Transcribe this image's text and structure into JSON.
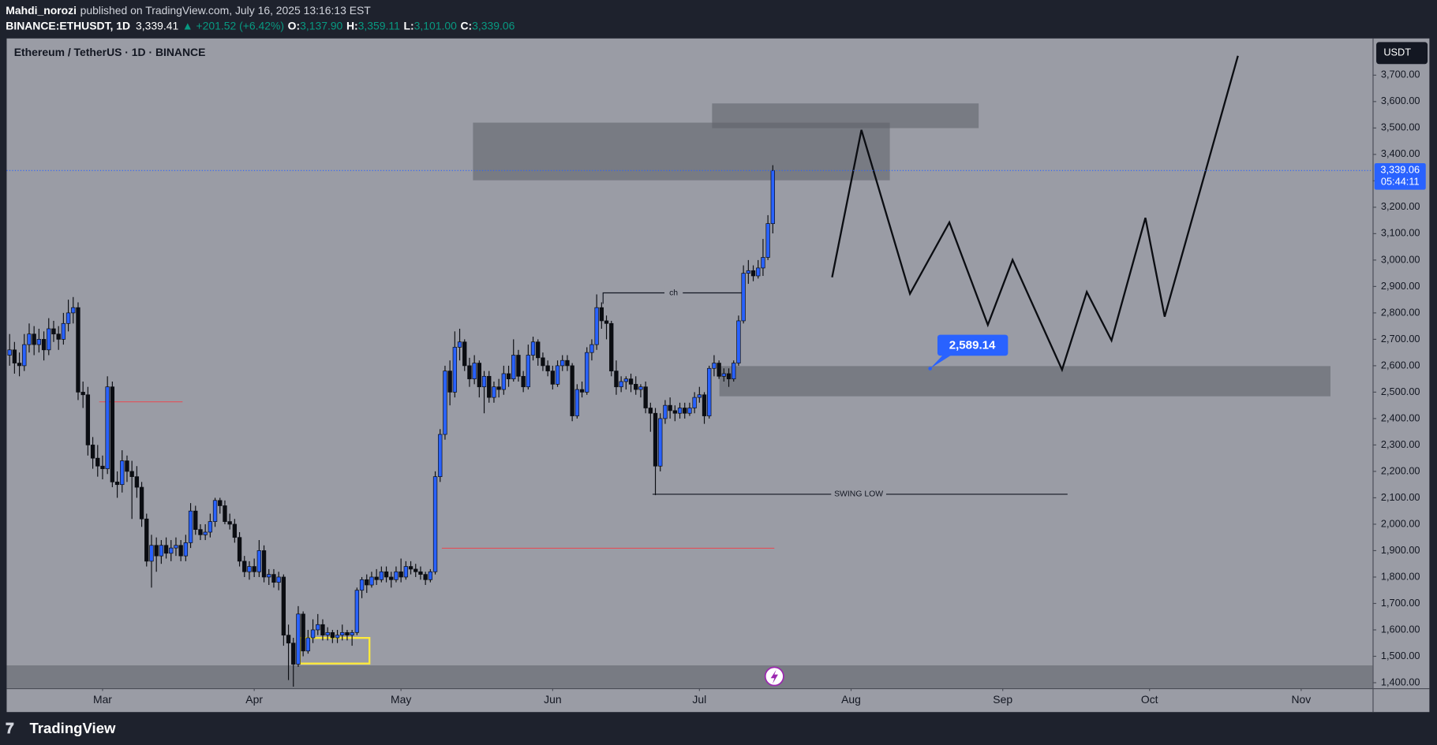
{
  "header": {
    "author": "Mahdi_norozi",
    "published": "published on TradingView.com, July 16, 2025 13:16:13 EST",
    "symbol": "BINANCE:ETHUSDT, 1D",
    "price": "3,339.41",
    "change": "▲ +201.52 (+6.42%)",
    "o_label": "O:",
    "o": "3,137.90",
    "h_label": "H:",
    "h": "3,359.11",
    "l_label": "L:",
    "l": "3,101.00",
    "c_label": "C:",
    "c": "3,339.06"
  },
  "footer": {
    "brand": "TradingView"
  },
  "chart_data": {
    "type": "candlestick",
    "title": "Ethereum / TetherUS · 1D · BINANCE",
    "currency": "USDT",
    "up_color": "#2962ff",
    "down_color": "#0b0d12",
    "open": [
      2640,
      2660,
      2610,
      2600,
      2680,
      2720,
      2680,
      2700,
      2660,
      2740,
      2720,
      2700,
      2760,
      2800,
      2820,
      2500,
      2490,
      2300,
      2250,
      2220,
      2210,
      2520,
      2160,
      2150,
      2240,
      2200,
      2180,
      2140,
      2020,
      1860,
      1920,
      1880,
      1920,
      1890,
      1910,
      1920,
      1880,
      1930,
      2050,
      1980,
      1960,
      1970,
      2010,
      2090,
      2070,
      2010,
      2000,
      1950,
      1860,
      1820,
      1840,
      1820,
      1900,
      1800,
      1810,
      1780,
      1800,
      1580,
      1550,
      1470,
      1660,
      1520,
      1570,
      1600,
      1620,
      1580,
      1590,
      1570,
      1580,
      1590,
      1580,
      1590,
      1750,
      1790,
      1770,
      1800,
      1790,
      1820,
      1800,
      1790,
      1820,
      1800,
      1840,
      1830,
      1820,
      1810,
      1790,
      1820,
      2180,
      2340,
      2580,
      2500,
      2670,
      2690,
      2600,
      2550,
      2610,
      2520,
      2560,
      2480,
      2520,
      2510,
      2570,
      2550,
      2640,
      2560,
      2520,
      2640,
      2690,
      2630,
      2600,
      2580,
      2530,
      2600,
      2620,
      2600,
      2410,
      2510,
      2500,
      2650,
      2680,
      2820,
      2770,
      2760,
      2580,
      2520,
      2540,
      2550,
      2530,
      2510,
      2520,
      2440,
      2420,
      2220,
      2400,
      2450,
      2430,
      2420,
      2440,
      2420,
      2440,
      2480,
      2490,
      2410,
      2590,
      2610,
      2560,
      2570,
      2550,
      2610,
      2770,
      2950,
      2960,
      2940,
      2970,
      3010,
      3137.9
    ],
    "high": [
      2720,
      2690,
      2650,
      2720,
      2760,
      2750,
      2740,
      2730,
      2780,
      2770,
      2750,
      2800,
      2850,
      2860,
      2840,
      2540,
      2520,
      2330,
      2300,
      2260,
      2560,
      2540,
      2200,
      2280,
      2260,
      2240,
      2220,
      2160,
      2040,
      1960,
      1950,
      1940,
      1950,
      1940,
      1950,
      1940,
      1960,
      2080,
      2070,
      2000,
      2000,
      2040,
      2100,
      2100,
      2090,
      2040,
      2020,
      1970,
      1880,
      1860,
      1870,
      1940,
      1920,
      1830,
      1830,
      1820,
      1810,
      1620,
      1570,
      1690,
      1670,
      1600,
      1640,
      1660,
      1640,
      1610,
      1600,
      1600,
      1620,
      1600,
      1600,
      1760,
      1800,
      1810,
      1820,
      1830,
      1840,
      1840,
      1820,
      1840,
      1870,
      1860,
      1860,
      1850,
      1840,
      1820,
      1830,
      2200,
      2360,
      2600,
      2620,
      2730,
      2740,
      2700,
      2630,
      2640,
      2620,
      2580,
      2580,
      2540,
      2550,
      2600,
      2600,
      2700,
      2660,
      2580,
      2680,
      2710,
      2700,
      2650,
      2620,
      2600,
      2620,
      2640,
      2640,
      2610,
      2530,
      2540,
      2670,
      2700,
      2870,
      2840,
      2790,
      2770,
      2620,
      2560,
      2560,
      2570,
      2560,
      2530,
      2540,
      2460,
      2440,
      2420,
      2470,
      2480,
      2450,
      2460,
      2460,
      2460,
      2500,
      2520,
      2500,
      2600,
      2640,
      2620,
      2590,
      2590,
      2620,
      2790,
      2980,
      3000,
      2980,
      3000,
      3080,
      3170,
      3359.11
    ],
    "low": [
      2600,
      2570,
      2560,
      2580,
      2650,
      2640,
      2650,
      2620,
      2640,
      2690,
      2660,
      2680,
      2730,
      2760,
      2470,
      2440,
      2260,
      2210,
      2180,
      2170,
      2190,
      2140,
      2100,
      2120,
      2160,
      2020,
      2100,
      1990,
      1840,
      1760,
      1820,
      1850,
      1870,
      1860,
      1880,
      1860,
      1860,
      1910,
      1960,
      1940,
      1940,
      1950,
      1990,
      2040,
      2000,
      1980,
      1930,
      1840,
      1800,
      1790,
      1800,
      1800,
      1780,
      1770,
      1760,
      1750,
      1540,
      1410,
      1385,
      1460,
      1500,
      1510,
      1550,
      1580,
      1560,
      1560,
      1550,
      1550,
      1560,
      1560,
      1540,
      1580,
      1720,
      1740,
      1760,
      1770,
      1780,
      1780,
      1760,
      1780,
      1780,
      1790,
      1810,
      1800,
      1790,
      1770,
      1780,
      1810,
      2160,
      2320,
      2450,
      2480,
      2620,
      2580,
      2520,
      2530,
      2480,
      2420,
      2460,
      2460,
      2480,
      2490,
      2520,
      2540,
      2540,
      2500,
      2510,
      2620,
      2600,
      2580,
      2560,
      2510,
      2520,
      2580,
      2580,
      2390,
      2400,
      2480,
      2490,
      2620,
      2660,
      2740,
      2700,
      2560,
      2490,
      2500,
      2510,
      2500,
      2490,
      2480,
      2420,
      2350,
      2110,
      2200,
      2380,
      2400,
      2390,
      2400,
      2400,
      2410,
      2420,
      2460,
      2380,
      2400,
      2560,
      2550,
      2540,
      2520,
      2540,
      2600,
      2760,
      2910,
      2920,
      2930,
      2940,
      3000,
      3101
    ],
    "close": [
      2660,
      2610,
      2600,
      2680,
      2720,
      2680,
      2700,
      2660,
      2740,
      2720,
      2700,
      2760,
      2800,
      2820,
      2500,
      2490,
      2300,
      2250,
      2220,
      2210,
      2520,
      2160,
      2150,
      2240,
      2200,
      2180,
      2140,
      2020,
      1860,
      1920,
      1880,
      1920,
      1890,
      1910,
      1920,
      1880,
      1930,
      2050,
      1980,
      1960,
      1970,
      2010,
      2090,
      2070,
      2010,
      2000,
      1950,
      1860,
      1820,
      1840,
      1820,
      1900,
      1800,
      1810,
      1780,
      1800,
      1580,
      1550,
      1470,
      1660,
      1520,
      1570,
      1600,
      1620,
      1580,
      1590,
      1570,
      1580,
      1590,
      1580,
      1590,
      1750,
      1790,
      1770,
      1800,
      1790,
      1820,
      1800,
      1790,
      1820,
      1800,
      1840,
      1830,
      1820,
      1810,
      1790,
      1820,
      2180,
      2340,
      2580,
      2500,
      2670,
      2690,
      2600,
      2550,
      2610,
      2520,
      2560,
      2480,
      2520,
      2510,
      2570,
      2550,
      2640,
      2560,
      2520,
      2640,
      2690,
      2630,
      2600,
      2580,
      2530,
      2600,
      2620,
      2600,
      2410,
      2510,
      2500,
      2650,
      2680,
      2820,
      2770,
      2760,
      2580,
      2520,
      2540,
      2550,
      2530,
      2510,
      2520,
      2440,
      2420,
      2220,
      2400,
      2450,
      2430,
      2420,
      2440,
      2420,
      2440,
      2480,
      2490,
      2410,
      2590,
      2610,
      2560,
      2570,
      2550,
      2610,
      2770,
      2950,
      2960,
      2940,
      2970,
      3010,
      3138,
      3339.06
    ],
    "last_price_label": "3,339.06",
    "countdown": "05:44:11",
    "xlim": [
      -0.6,
      278.6
    ],
    "xticks": [
      {
        "value": 19,
        "label": "Mar"
      },
      {
        "value": 50,
        "label": "Apr"
      },
      {
        "value": 80,
        "label": "May"
      },
      {
        "value": 111,
        "label": "Jun"
      },
      {
        "value": 141,
        "label": "Jul"
      },
      {
        "value": 172,
        "label": "Aug"
      },
      {
        "value": 203,
        "label": "Sep"
      },
      {
        "value": 233,
        "label": "Oct"
      },
      {
        "value": 264,
        "label": "Nov"
      }
    ],
    "ylim": [
      1379,
      3839
    ],
    "yticks": [
      {
        "value": 1400,
        "label": "1,400.00"
      },
      {
        "value": 1500,
        "label": "1,500.00"
      },
      {
        "value": 1600,
        "label": "1,600.00"
      },
      {
        "value": 1700,
        "label": "1,700.00"
      },
      {
        "value": 1800,
        "label": "1,800.00"
      },
      {
        "value": 1900,
        "label": "1,900.00"
      },
      {
        "value": 2000,
        "label": "2,000.00"
      },
      {
        "value": 2100,
        "label": "2,100.00"
      },
      {
        "value": 2200,
        "label": "2,200.00"
      },
      {
        "value": 2300,
        "label": "2,300.00"
      },
      {
        "value": 2400,
        "label": "2,400.00"
      },
      {
        "value": 2500,
        "label": "2,500.00"
      },
      {
        "value": 2600,
        "label": "2,600.00"
      },
      {
        "value": 2700,
        "label": "2,700.00"
      },
      {
        "value": 2800,
        "label": "2,800.00"
      },
      {
        "value": 2900,
        "label": "2,900.00"
      },
      {
        "value": 3000,
        "label": "3,000.00"
      },
      {
        "value": 3100,
        "label": "3,100.00"
      },
      {
        "value": 3200,
        "label": "3,200.00"
      },
      {
        "value": 3300,
        "label": "3,300.00"
      },
      {
        "value": 3400,
        "label": "3,400.00"
      },
      {
        "value": 3500,
        "label": "3,500.00"
      },
      {
        "value": 3600,
        "label": "3,600.00"
      },
      {
        "value": 3700,
        "label": "3,700.00"
      }
    ],
    "annotations": {
      "ch": "ch",
      "swing_low": "SWING LOW"
    },
    "callout": {
      "value": 2589.14,
      "label": "2,589.14"
    }
  }
}
